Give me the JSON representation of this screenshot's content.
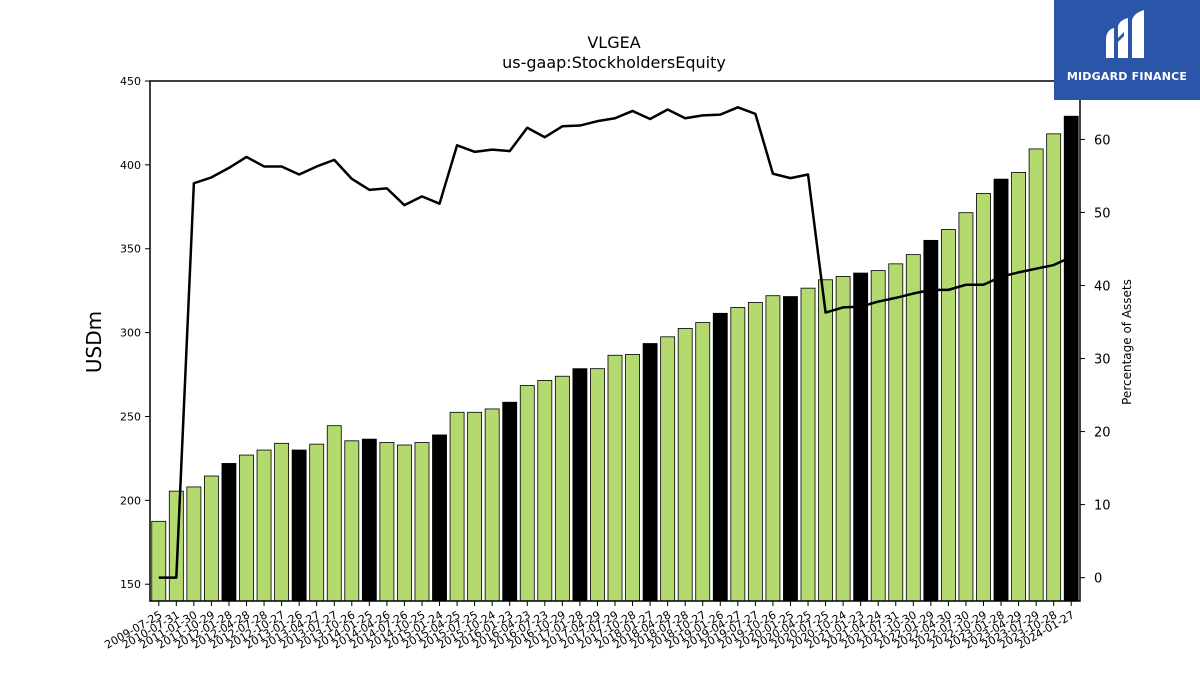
{
  "chart_data": {
    "type": "bar",
    "title": "VLGEA",
    "subtitle": "us-gaap:StockholdersEquity",
    "ylabel": "USDm",
    "y2label": "Percentage of Assets",
    "ylim": [
      140,
      450
    ],
    "y2lim": [
      -3.2,
      68
    ],
    "yticks": [
      150,
      200,
      250,
      300,
      350,
      400,
      450
    ],
    "y2ticks": [
      0,
      10,
      20,
      30,
      40,
      50,
      60
    ],
    "grid": false,
    "colors": {
      "bar": "#b3d96f",
      "bar_highlight": "#000000",
      "line": "#000000",
      "axis": "#000000"
    },
    "categories": [
      "2009-07-25",
      "2010-07-31",
      "2011-01-30",
      "2011-10-29",
      "2012-01-28",
      "2012-04-28",
      "2012-07-28",
      "2012-10-27",
      "2013-01-26",
      "2013-04-27",
      "2013-07-27",
      "2013-10-26",
      "2014-01-25",
      "2014-04-26",
      "2014-07-26",
      "2014-10-25",
      "2015-01-24",
      "2015-04-25",
      "2015-07-25",
      "2015-10-24",
      "2016-01-23",
      "2016-04-23",
      "2016-07-23",
      "2016-10-29",
      "2017-01-28",
      "2017-04-29",
      "2017-07-29",
      "2017-10-28",
      "2018-01-27",
      "2018-04-28",
      "2018-07-28",
      "2018-10-27",
      "2019-01-26",
      "2019-04-27",
      "2019-07-27",
      "2019-10-26",
      "2020-01-25",
      "2020-04-25",
      "2020-07-25",
      "2020-10-24",
      "2021-01-23",
      "2021-04-24",
      "2021-07-31",
      "2021-10-30",
      "2022-01-29",
      "2022-04-30",
      "2022-07-30",
      "2022-10-29",
      "2023-01-28",
      "2023-04-29",
      "2023-07-29",
      "2023-10-28",
      "2024-01-27"
    ],
    "series": [
      {
        "kind": "bar",
        "axis": "left",
        "values": [
          187.5,
          205.5,
          208,
          214.5,
          222,
          227,
          230,
          234,
          230,
          233.5,
          244.5,
          235.5,
          236.5,
          234.5,
          233,
          234.5,
          239,
          252.5,
          252.5,
          254.5,
          258.5,
          268.5,
          271.5,
          274,
          278.5,
          278.5,
          286.5,
          287,
          293.5,
          297.5,
          302.5,
          306,
          311.5,
          315,
          318,
          322,
          321.5,
          326.5,
          331.5,
          333.5,
          335.5,
          337,
          341,
          346.5,
          355,
          361.5,
          371.5,
          383,
          391.5,
          395.5,
          409.5,
          418.5,
          429
        ],
        "highlight": [
          false,
          false,
          false,
          false,
          true,
          false,
          false,
          false,
          true,
          false,
          false,
          false,
          true,
          false,
          false,
          false,
          true,
          false,
          false,
          false,
          true,
          false,
          false,
          false,
          true,
          false,
          false,
          false,
          true,
          false,
          false,
          false,
          true,
          false,
          false,
          false,
          true,
          false,
          false,
          false,
          true,
          false,
          false,
          false,
          true,
          false,
          false,
          false,
          true,
          false,
          false,
          false,
          true
        ]
      },
      {
        "kind": "line",
        "axis": "right",
        "values": [
          0,
          0,
          54,
          54.8,
          56.1,
          57.6,
          56.3,
          56.3,
          55.2,
          56.3,
          57.2,
          54.6,
          53.1,
          53.3,
          51,
          52.2,
          51.2,
          59.2,
          58.3,
          58.6,
          58.4,
          61.6,
          60.3,
          61.8,
          61.9,
          62.5,
          62.9,
          63.9,
          62.8,
          64.1,
          62.9,
          63.3,
          63.4,
          64.4,
          63.5,
          55.3,
          54.7,
          55.2,
          36.3,
          37,
          37.1,
          37.8,
          38.3,
          38.9,
          39.4,
          39.4,
          40.1,
          40.1,
          41.2,
          41.8,
          42.3,
          42.8,
          43.9
        ]
      }
    ]
  },
  "logo": {
    "text": "MIDGARD FINANCE",
    "color": "#2b55a8"
  }
}
